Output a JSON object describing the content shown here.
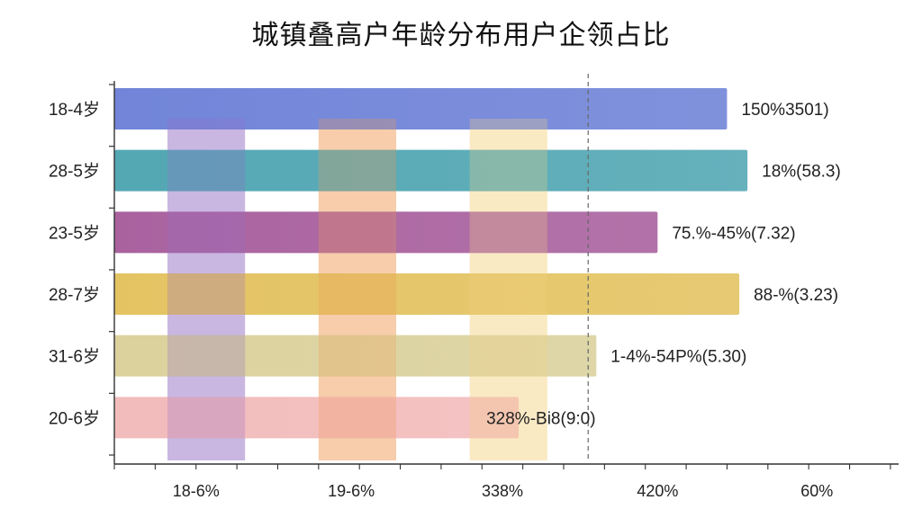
{
  "chart_data": {
    "type": "bar",
    "orientation": "horizontal",
    "title": "城镇叠高户年龄分布用户企领占比",
    "xlabel": "",
    "ylabel": "",
    "categories": [
      "18-4岁",
      "28-5岁",
      "23-5岁",
      "28-7岁",
      "31-6岁",
      "20-6岁"
    ],
    "values": [
      150,
      155,
      133,
      153,
      118,
      99
    ],
    "data_labels": [
      "150%3501)",
      "18%(58.3)",
      "75.%-45%(7.32)",
      "88-%(3.23)",
      "1-4%-54P%(5.30)",
      "328%-Bi8(9:0)"
    ],
    "bar_colors": [
      "#6a7ed6",
      "#4aa3b0",
      "#a55a9a",
      "#e2c05a",
      "#d9cf98",
      "#f2b8b8"
    ],
    "xaxis_tick_labels": [
      "18-6%",
      "19-6%",
      "338%",
      "420%",
      "60%"
    ],
    "xaxis_tick_values": [
      20,
      58,
      95,
      133,
      172
    ],
    "xlim": [
      0,
      192
    ],
    "reference_line": 116,
    "highlight_bands": [
      {
        "from": 13,
        "to": 32,
        "color": "#9a78c8"
      },
      {
        "from": 50,
        "to": 69,
        "color": "#f0a060"
      },
      {
        "from": 87,
        "to": 106,
        "color": "#f5d690"
      }
    ],
    "grid": false,
    "legend": "none"
  }
}
